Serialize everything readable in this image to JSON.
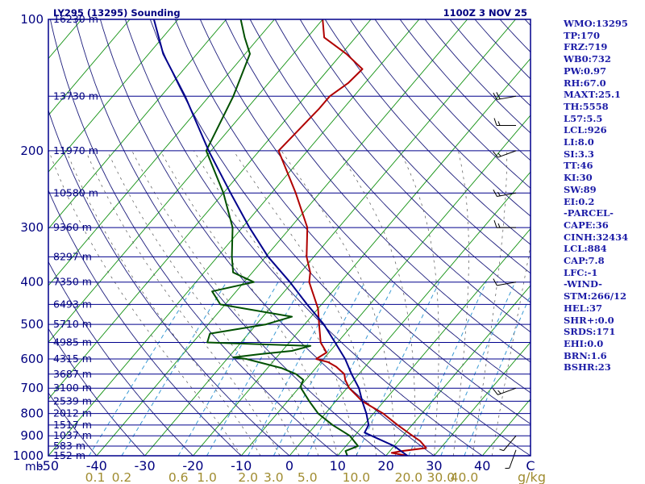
{
  "chart_data": {
    "type": "skew-t",
    "title": "LY295 (13295) Sounding",
    "valid_time": "1100Z  3 NOV 25",
    "pressure_axis_label": "mb",
    "pressure_levels": [
      100,
      200,
      300,
      400,
      500,
      600,
      700,
      800,
      900,
      1000
    ],
    "pressure_range": [
      100,
      1000
    ],
    "temperature_range_at_1000mb": [
      -50,
      50
    ],
    "temperature_ticks": [
      -50,
      -40,
      -30,
      -20,
      -10,
      0,
      10,
      20,
      30,
      40,
      50
    ],
    "temperature_tick_labels": [
      "-50",
      "-40",
      "-30",
      "-20",
      "-10",
      "0",
      "10",
      "20",
      "30",
      "40",
      "C"
    ],
    "mixing_ratio_label": "g/kg",
    "mixing_ratio_ticks": [
      "0.1",
      "0.2",
      "0.6",
      "1.0",
      "2.0",
      "3.0",
      "5.0",
      "10.0",
      "20.0",
      "30.0",
      "40.0"
    ],
    "mixing_ratio_values": [
      0.1,
      0.2,
      0.6,
      1.0,
      2.0,
      3.0,
      5.0,
      10.0,
      20.0,
      30.0,
      40.0
    ],
    "height_levels": [
      {
        "p": 100,
        "label": "16230 m"
      },
      {
        "p": 150,
        "label": "13730 m"
      },
      {
        "p": 200,
        "label": "11970 m"
      },
      {
        "p": 250,
        "label": "10580 m"
      },
      {
        "p": 300,
        "label": "9360 m"
      },
      {
        "p": 350,
        "label": "8297 m"
      },
      {
        "p": 400,
        "label": "7350 m"
      },
      {
        "p": 450,
        "label": "6493 m"
      },
      {
        "p": 500,
        "label": "5710 m"
      },
      {
        "p": 550,
        "label": "4985 m"
      },
      {
        "p": 600,
        "label": "4315 m"
      },
      {
        "p": 650,
        "label": "3687 m"
      },
      {
        "p": 700,
        "label": "3100 m"
      },
      {
        "p": 750,
        "label": "2539 m"
      },
      {
        "p": 800,
        "label": "2012 m"
      },
      {
        "p": 850,
        "label": "1517 m"
      },
      {
        "p": 900,
        "label": "1037 m"
      },
      {
        "p": 950,
        "label": "583 m"
      },
      {
        "p": 1000,
        "label": "152 m"
      }
    ],
    "series": [
      {
        "name": "Temperature",
        "color": "#b00000",
        "points": [
          [
            1000,
            24.5
          ],
          [
            985,
            20.7
          ],
          [
            975,
            22.5
          ],
          [
            960,
            27.0
          ],
          [
            925,
            24.5
          ],
          [
            900,
            22.0
          ],
          [
            850,
            17.0
          ],
          [
            800,
            12.0
          ],
          [
            750,
            5.5
          ],
          [
            700,
            0.5
          ],
          [
            670,
            -1.8
          ],
          [
            650,
            -3.0
          ],
          [
            625,
            -6.0
          ],
          [
            610,
            -8.5
          ],
          [
            600,
            -11.5
          ],
          [
            580,
            -10.5
          ],
          [
            550,
            -13.5
          ],
          [
            500,
            -17.0
          ],
          [
            460,
            -20.0
          ],
          [
            400,
            -26.5
          ],
          [
            380,
            -28.0
          ],
          [
            350,
            -31.5
          ],
          [
            300,
            -36.5
          ],
          [
            250,
            -45.0
          ],
          [
            200,
            -56.0
          ],
          [
            160,
            -55.0
          ],
          [
            150,
            -55.0
          ],
          [
            140,
            -53.5
          ],
          [
            130,
            -53.0
          ],
          [
            120,
            -59.0
          ],
          [
            110,
            -66.5
          ],
          [
            100,
            -70.0
          ]
        ]
      },
      {
        "name": "Dewpoint",
        "color": "#005000",
        "points": [
          [
            1000,
            12.0
          ],
          [
            975,
            10.8
          ],
          [
            950,
            12.5
          ],
          [
            900,
            9.0
          ],
          [
            850,
            3.5
          ],
          [
            800,
            -1.5
          ],
          [
            750,
            -5.5
          ],
          [
            700,
            -9.5
          ],
          [
            690,
            -10.0
          ],
          [
            670,
            -10.5
          ],
          [
            650,
            -13.0
          ],
          [
            630,
            -17.0
          ],
          [
            600,
            -26.0
          ],
          [
            595,
            -29.0
          ],
          [
            585,
            -24.0
          ],
          [
            575,
            -18.0
          ],
          [
            560,
            -15.0
          ],
          [
            550,
            -37.0
          ],
          [
            525,
            -38.0
          ],
          [
            500,
            -28.0
          ],
          [
            480,
            -24.0
          ],
          [
            450,
            -41.0
          ],
          [
            420,
            -45.0
          ],
          [
            400,
            -38.0
          ],
          [
            380,
            -44.0
          ],
          [
            350,
            -47.0
          ],
          [
            300,
            -52.0
          ],
          [
            250,
            -60.0
          ],
          [
            200,
            -71.0
          ],
          [
            150,
            -75.0
          ],
          [
            120,
            -79.0
          ],
          [
            110,
            -83.0
          ],
          [
            100,
            -87.0
          ]
        ]
      },
      {
        "name": "Parcel",
        "color": "#00008c",
        "points": [
          [
            1000,
            24.5
          ],
          [
            950,
            20.0
          ],
          [
            900,
            13.5
          ],
          [
            885,
            11.5
          ],
          [
            850,
            11.0
          ],
          [
            800,
            8.5
          ],
          [
            750,
            5.5
          ],
          [
            700,
            2.5
          ],
          [
            650,
            -1.5
          ],
          [
            600,
            -5.5
          ],
          [
            550,
            -10.5
          ],
          [
            500,
            -16.0
          ],
          [
            450,
            -23.0
          ],
          [
            400,
            -30.5
          ],
          [
            350,
            -39.5
          ],
          [
            300,
            -48.5
          ],
          [
            250,
            -58.5
          ],
          [
            200,
            -70.5
          ],
          [
            150,
            -85.0
          ],
          [
            120,
            -97.0
          ],
          [
            100,
            -105.0
          ]
        ]
      }
    ],
    "wind_barbs": [
      {
        "p": 150,
        "dir": 260,
        "kt": 20
      },
      {
        "p": 175,
        "dir": 270,
        "kt": 15
      },
      {
        "p": 200,
        "dir": 250,
        "kt": 15
      },
      {
        "p": 250,
        "dir": 260,
        "kt": 15
      },
      {
        "p": 300,
        "dir": 270,
        "kt": 15
      },
      {
        "p": 400,
        "dir": 260,
        "kt": 10
      },
      {
        "p": 700,
        "dir": 250,
        "kt": 15
      },
      {
        "p": 900,
        "dir": 220,
        "kt": 5
      },
      {
        "p": 970,
        "dir": 200,
        "kt": 5
      }
    ],
    "indices": [
      "WMO:13295",
      "TP:170",
      "FRZ:719",
      "WB0:732",
      "PW:0.97",
      "RH:67.0",
      "MAXT:25.1",
      "TH:5558",
      "L57:5.5",
      "LCL:926",
      "LI:8.0",
      "SI:3.3",
      "TT:46",
      "KI:30",
      "SW:89",
      "EI:0.2",
      "-PARCEL-",
      "CAPE:36",
      "CINH:32434",
      "LCL:884",
      "CAP:7.8",
      "LFC:-1",
      "-WIND-",
      "STM:266/12",
      "HEL:37",
      "SHR+:0.0",
      "SRDS:171",
      "EHI:0.0",
      "BRN:1.6",
      "BSHR:23"
    ]
  },
  "colors": {
    "isobar": "#00008c",
    "isotherm": "#109010",
    "dry_adiabat": "#1c1c7c",
    "mixing_ratio": "#3a9ad4",
    "moist_adiabat": "#555555",
    "mixing_ratio_label": "#a08c30",
    "axis_text": "#000080"
  }
}
